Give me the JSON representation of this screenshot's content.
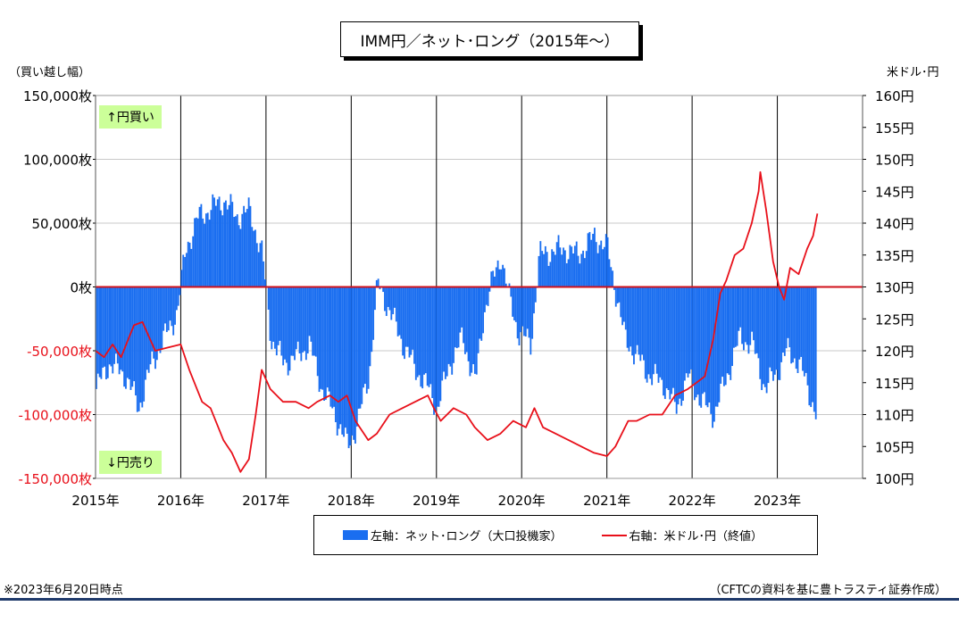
{
  "title": "IMM円／ネット･ロング（2015年～）",
  "left_unit": "（買い越し幅）",
  "right_unit": "米ドル･円",
  "tag_buy": "↑円買い",
  "tag_sell": "↓円売り",
  "legend": {
    "bar_label": "左軸：ネット･ロング（大口投機家）",
    "line_label": "右軸：米ドル･円（終値）"
  },
  "footnote_left": "※2023年6月20日時点",
  "footnote_right": "（CFTCの資料を基に豊トラスティ証券作成）",
  "colors": {
    "bar": "#1a6ef0",
    "line": "#e8101a",
    "zero_line": "#d0101a"
  },
  "chart_data": {
    "type": "bar+line",
    "x_labels": [
      "2015年",
      "2016年",
      "2017年",
      "2018年",
      "2019年",
      "2020年",
      "2021年",
      "2022年",
      "2023年"
    ],
    "x_range": [
      2015.0,
      2024.0
    ],
    "y_left": {
      "min": -150000,
      "max": 150000,
      "step": 50000,
      "tick_labels": [
        "150,000枚",
        "100,000枚",
        "50,000枚",
        "0枚",
        "-50,000枚",
        "-100,000枚",
        "-150,000枚"
      ]
    },
    "y_right": {
      "min": 100,
      "max": 160,
      "step": 5,
      "tick_labels": [
        "160円",
        "155円",
        "150円",
        "145円",
        "140円",
        "135円",
        "130円",
        "125円",
        "120円",
        "115円",
        "110円",
        "105円",
        "100円"
      ]
    },
    "grid": true,
    "series": [
      {
        "name": "左軸：ネット･ロング（大口投機家）",
        "axis": "left",
        "kind": "bar",
        "points": [
          [
            2015.0,
            -80000
          ],
          [
            2015.15,
            -60000
          ],
          [
            2015.35,
            -70000
          ],
          [
            2015.5,
            -95000
          ],
          [
            2015.65,
            -60000
          ],
          [
            2015.8,
            -40000
          ],
          [
            2015.95,
            -20000
          ],
          [
            2016.05,
            30000
          ],
          [
            2016.2,
            55000
          ],
          [
            2016.35,
            62000
          ],
          [
            2016.5,
            68000
          ],
          [
            2016.65,
            55000
          ],
          [
            2016.8,
            60000
          ],
          [
            2016.95,
            25000
          ],
          [
            2017.05,
            -40000
          ],
          [
            2017.2,
            -60000
          ],
          [
            2017.35,
            -55000
          ],
          [
            2017.5,
            -45000
          ],
          [
            2017.65,
            -80000
          ],
          [
            2017.8,
            -100000
          ],
          [
            2017.95,
            -125000
          ],
          [
            2018.05,
            -110000
          ],
          [
            2018.2,
            -70000
          ],
          [
            2018.3,
            3000
          ],
          [
            2018.45,
            -20000
          ],
          [
            2018.6,
            -45000
          ],
          [
            2018.75,
            -65000
          ],
          [
            2018.9,
            -80000
          ],
          [
            2019.0,
            -95000
          ],
          [
            2019.15,
            -60000
          ],
          [
            2019.3,
            -40000
          ],
          [
            2019.45,
            -75000
          ],
          [
            2019.55,
            -20000
          ],
          [
            2019.65,
            5000
          ],
          [
            2019.75,
            25000
          ],
          [
            2019.85,
            -10000
          ],
          [
            2019.95,
            -35000
          ],
          [
            2020.1,
            -45000
          ],
          [
            2020.2,
            25000
          ],
          [
            2020.35,
            28000
          ],
          [
            2020.5,
            30000
          ],
          [
            2020.65,
            25000
          ],
          [
            2020.85,
            40000
          ],
          [
            2021.0,
            30000
          ],
          [
            2021.2,
            -40000
          ],
          [
            2021.35,
            -55000
          ],
          [
            2021.5,
            -70000
          ],
          [
            2021.65,
            -75000
          ],
          [
            2021.8,
            -95000
          ],
          [
            2021.95,
            -70000
          ],
          [
            2022.1,
            -90000
          ],
          [
            2022.25,
            -100000
          ],
          [
            2022.4,
            -70000
          ],
          [
            2022.55,
            -40000
          ],
          [
            2022.7,
            -45000
          ],
          [
            2022.85,
            -80000
          ],
          [
            2023.0,
            -65000
          ],
          [
            2023.1,
            -50000
          ],
          [
            2023.25,
            -60000
          ],
          [
            2023.35,
            -80000
          ],
          [
            2023.45,
            -100000
          ]
        ]
      },
      {
        "name": "右軸：米ドル･円（終値）",
        "axis": "right",
        "kind": "line",
        "points": [
          [
            2015.0,
            120
          ],
          [
            2015.1,
            119
          ],
          [
            2015.2,
            121
          ],
          [
            2015.3,
            119
          ],
          [
            2015.45,
            124
          ],
          [
            2015.55,
            124.5
          ],
          [
            2015.7,
            120
          ],
          [
            2015.85,
            120.5
          ],
          [
            2016.0,
            121
          ],
          [
            2016.1,
            117
          ],
          [
            2016.25,
            112
          ],
          [
            2016.35,
            111
          ],
          [
            2016.5,
            106
          ],
          [
            2016.6,
            104
          ],
          [
            2016.7,
            101
          ],
          [
            2016.8,
            103
          ],
          [
            2016.88,
            110
          ],
          [
            2016.95,
            117
          ],
          [
            2017.05,
            114
          ],
          [
            2017.2,
            112
          ],
          [
            2017.35,
            112
          ],
          [
            2017.5,
            111
          ],
          [
            2017.6,
            112
          ],
          [
            2017.75,
            113
          ],
          [
            2017.85,
            112
          ],
          [
            2017.95,
            113
          ],
          [
            2018.05,
            109
          ],
          [
            2018.2,
            106
          ],
          [
            2018.3,
            107
          ],
          [
            2018.45,
            110
          ],
          [
            2018.6,
            111
          ],
          [
            2018.75,
            112
          ],
          [
            2018.9,
            113
          ],
          [
            2018.97,
            111
          ],
          [
            2019.05,
            109
          ],
          [
            2019.2,
            111
          ],
          [
            2019.35,
            110
          ],
          [
            2019.45,
            108
          ],
          [
            2019.6,
            106
          ],
          [
            2019.75,
            107
          ],
          [
            2019.9,
            109
          ],
          [
            2020.05,
            108
          ],
          [
            2020.15,
            111
          ],
          [
            2020.25,
            108
          ],
          [
            2020.4,
            107
          ],
          [
            2020.55,
            106
          ],
          [
            2020.7,
            105
          ],
          [
            2020.85,
            104
          ],
          [
            2021.0,
            103.5
          ],
          [
            2021.1,
            105
          ],
          [
            2021.25,
            109
          ],
          [
            2021.35,
            109
          ],
          [
            2021.5,
            110
          ],
          [
            2021.65,
            110
          ],
          [
            2021.8,
            113
          ],
          [
            2021.95,
            114
          ],
          [
            2022.05,
            115
          ],
          [
            2022.15,
            116
          ],
          [
            2022.25,
            122
          ],
          [
            2022.33,
            129
          ],
          [
            2022.4,
            131
          ],
          [
            2022.5,
            135
          ],
          [
            2022.6,
            136
          ],
          [
            2022.7,
            140
          ],
          [
            2022.78,
            145
          ],
          [
            2022.8,
            148
          ],
          [
            2022.87,
            142
          ],
          [
            2022.95,
            134
          ],
          [
            2023.02,
            130
          ],
          [
            2023.08,
            128
          ],
          [
            2023.15,
            133
          ],
          [
            2023.25,
            132
          ],
          [
            2023.35,
            136
          ],
          [
            2023.42,
            138
          ],
          [
            2023.47,
            141.5
          ]
        ]
      }
    ]
  }
}
